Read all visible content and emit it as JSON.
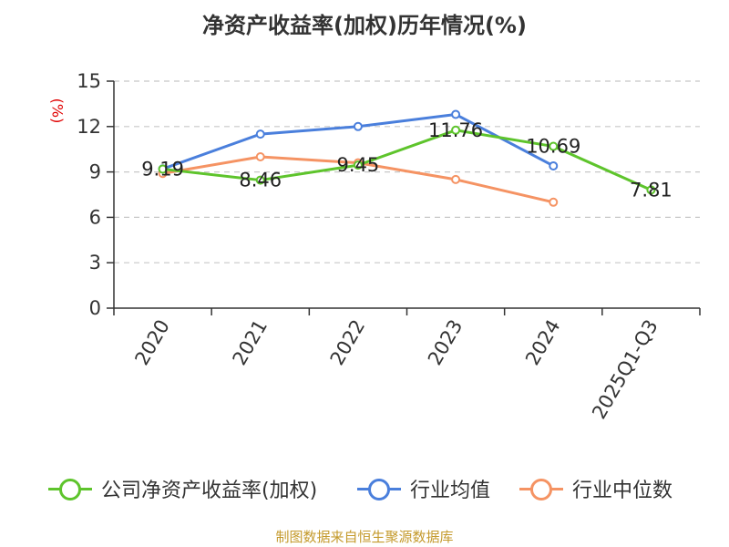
{
  "chart_data": {
    "type": "line",
    "title": "净资产收益率(加权)历年情况(%)",
    "ylabel": "(%)",
    "xlabel": "",
    "categories": [
      "2020",
      "2021",
      "2022",
      "2023",
      "2024",
      "2025Q1-Q3"
    ],
    "ylim": [
      0,
      15
    ],
    "yticks": [
      0,
      3,
      6,
      9,
      12,
      15
    ],
    "grid": "horizontal-dashed",
    "legend_position": "bottom",
    "series": [
      {
        "name": "公司净资产收益率(加权)",
        "color": "#5ec42c",
        "values": [
          9.19,
          8.46,
          9.45,
          11.76,
          10.69,
          7.81
        ],
        "labels": [
          "9.19",
          "8.46",
          "9.45",
          "11.76",
          "10.69",
          "7.81"
        ]
      },
      {
        "name": "行业均值",
        "color": "#4a7fdc",
        "values": [
          9.2,
          11.5,
          12.0,
          12.8,
          9.4,
          null
        ]
      },
      {
        "name": "行业中位数",
        "color": "#f59363",
        "values": [
          8.9,
          10.0,
          9.6,
          8.5,
          7.0,
          null
        ]
      }
    ]
  },
  "source": "制图数据来自恒生聚源数据库"
}
